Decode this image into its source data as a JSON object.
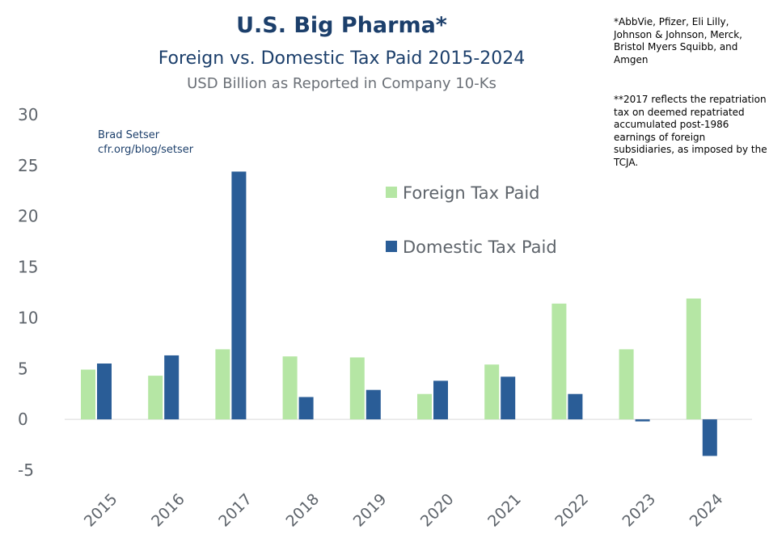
{
  "titles": {
    "main": "U.S. Big Pharma*",
    "sub": "Foreign vs. Domestic Tax Paid 2015-2024",
    "units": "USD Billion as Reported in Company 10-Ks"
  },
  "notes": {
    "companies": "*AbbVie, Pfizer, Eli Lilly, Johnson & Johnson, Merck, Bristol Myers Squibb, and Amgen",
    "repatriation": "**2017 reflects the repatriation tax on deemed repatriated accumulated post-1986 earnings of foreign subsidiaries, as imposed by the TCJA."
  },
  "credit": {
    "author": "Brad Setser",
    "url": "cfr.org/blog/setser"
  },
  "colors": {
    "foreign": "#b5e6a4",
    "domestic": "#2a5d97",
    "title": "#1c3f6b",
    "axis_text": "#5e646b"
  },
  "chart_data": {
    "type": "bar",
    "title": "U.S. Big Pharma* Foreign vs. Domestic Tax Paid 2015-2024",
    "ylabel": "USD Billion",
    "xlabel": "",
    "categories": [
      "2015",
      "2016",
      "2017",
      "2018",
      "2019",
      "2020",
      "2021",
      "2022",
      "2023",
      "2024"
    ],
    "series": [
      {
        "name": "Foreign Tax Paid",
        "values": [
          4.9,
          4.3,
          6.9,
          6.2,
          6.1,
          2.5,
          5.4,
          11.4,
          6.9,
          11.9
        ]
      },
      {
        "name": "Domestic Tax Paid",
        "values": [
          5.5,
          6.3,
          24.4,
          2.2,
          2.9,
          3.8,
          4.2,
          2.5,
          -0.2,
          -3.6
        ]
      }
    ],
    "ylim": [
      -5,
      30
    ],
    "yticks": [
      "30",
      "25",
      "20",
      "15",
      "10",
      "5",
      "0",
      "-5"
    ],
    "ytick_values": [
      30,
      25,
      20,
      15,
      10,
      5,
      0,
      -5
    ],
    "legend": "upper-middle",
    "grid": false
  }
}
